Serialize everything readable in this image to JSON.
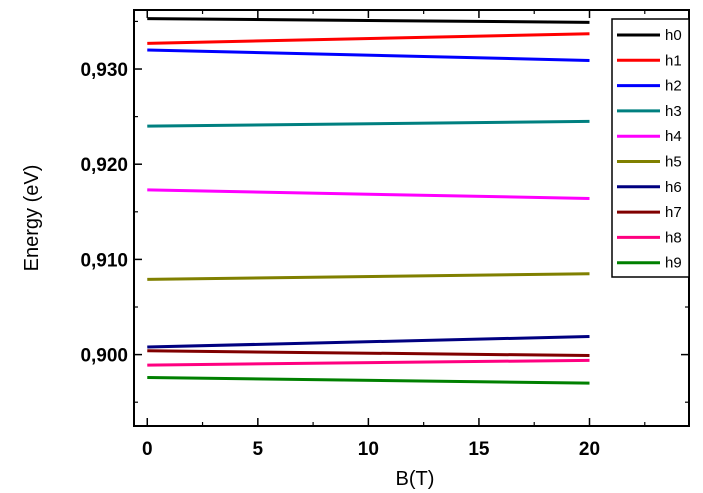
{
  "chart_data": {
    "type": "line",
    "xlabel": "B(T)",
    "ylabel": "Energy (eV)",
    "xlim": [
      -0.6,
      24.5
    ],
    "ylim": [
      0.8925,
      0.9362
    ],
    "xticks": [
      0,
      5,
      10,
      15,
      20
    ],
    "xtick_labels": [
      "0",
      "5",
      "10",
      "15",
      "20"
    ],
    "yticks": [
      0.9,
      0.91,
      0.92,
      0.93
    ],
    "ytick_labels": [
      "0,900",
      "0,910",
      "0,920",
      "0,930"
    ],
    "legend_position": "top-right",
    "grid": false,
    "x": [
      0,
      20
    ],
    "series": [
      {
        "name": "h0",
        "color": "#000000",
        "values": [
          0.9353,
          0.9349
        ]
      },
      {
        "name": "h1",
        "color": "#ff0000",
        "values": [
          0.9327,
          0.9337
        ]
      },
      {
        "name": "h2",
        "color": "#0000ff",
        "values": [
          0.932,
          0.9309
        ]
      },
      {
        "name": "h3",
        "color": "#008080",
        "values": [
          0.924,
          0.9245
        ]
      },
      {
        "name": "h4",
        "color": "#ff00ff",
        "values": [
          0.9173,
          0.9164
        ]
      },
      {
        "name": "h5",
        "color": "#808000",
        "values": [
          0.9079,
          0.9085
        ]
      },
      {
        "name": "h6",
        "color": "#000080",
        "values": [
          0.9008,
          0.9019
        ]
      },
      {
        "name": "h7",
        "color": "#800000",
        "values": [
          0.9004,
          0.8999
        ]
      },
      {
        "name": "h8",
        "color": "#ff0080",
        "values": [
          0.8989,
          0.8994
        ]
      },
      {
        "name": "h9",
        "color": "#008000",
        "values": [
          0.8976,
          0.897
        ]
      }
    ]
  }
}
